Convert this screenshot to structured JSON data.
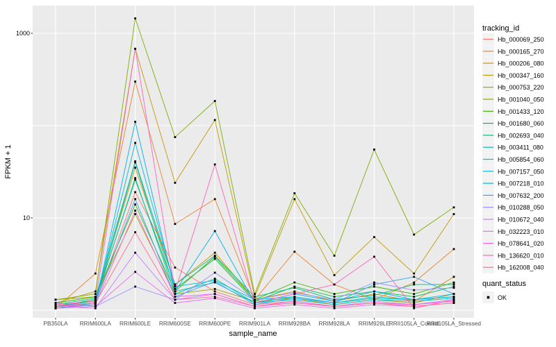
{
  "chart_data": {
    "type": "line",
    "title": "",
    "xlabel": "sample_name",
    "ylabel": "FPKM + 1",
    "y_scale": "log10",
    "ylim": [
      1,
      1500
    ],
    "grid": true,
    "legend_position": "right",
    "y_axis_tick_labels": [
      "10",
      "1000"
    ],
    "y_axis_tick_values": [
      10,
      1000
    ],
    "y_gridline_values": [
      1,
      10,
      100,
      1000
    ],
    "x_categories": [
      "PB350LA",
      "RRIM600LA",
      "RRIM600LE",
      "RRIM600SE",
      "RRIM600PE",
      "RRIM901LA",
      "RRIM928BA",
      "RRIM928LA",
      "RRIM928LE",
      "RRII105LA_Control",
      "RRII105LA_Stressed"
    ],
    "legend_title": "tracking_id",
    "quant_status": {
      "title": "quant_status",
      "items": [
        "OK"
      ]
    },
    "point_marker": "black-square",
    "series": [
      {
        "name": "Hb_000069_250",
        "color": "#F8766D",
        "values": [
          1.1,
          1.2,
          19,
          2.9,
          1.6,
          1.15,
          1.25,
          1.1,
          1.2,
          1.15,
          1.3
        ]
      },
      {
        "name": "Hb_000165_270",
        "color": "#EA8331",
        "values": [
          1.05,
          2.5,
          300,
          8.6,
          16,
          1.3,
          4.3,
          1.9,
          1.3,
          2.0,
          4.6
        ]
      },
      {
        "name": "Hb_000206_080",
        "color": "#D89000",
        "values": [
          1.1,
          1.3,
          35,
          1.9,
          4.2,
          1.3,
          1.6,
          1.25,
          1.5,
          1.25,
          2.3
        ]
      },
      {
        "name": "Hb_000347_160",
        "color": "#C09B00",
        "values": [
          1.2,
          1.6,
          680,
          24,
          115,
          1.4,
          16,
          2.4,
          6.2,
          2.5,
          11
        ]
      },
      {
        "name": "Hb_000753_220",
        "color": "#A3A500",
        "values": [
          1.3,
          1.4,
          11,
          1.5,
          1.7,
          1.25,
          1.35,
          1.15,
          1.3,
          1.2,
          1.5
        ]
      },
      {
        "name": "Hb_001040_050",
        "color": "#7CAE00",
        "values": [
          1.3,
          1.5,
          1450,
          75,
          185,
          1.5,
          18.5,
          3.9,
          55,
          6.6,
          13
        ]
      },
      {
        "name": "Hb_001433_120",
        "color": "#39B600",
        "values": [
          1.2,
          1.4,
          14,
          1.6,
          3.8,
          1.3,
          2.0,
          1.5,
          1.8,
          1.5,
          2.0
        ]
      },
      {
        "name": "Hb_001680_060",
        "color": "#00BB4E",
        "values": [
          1.1,
          1.3,
          26,
          1.7,
          3.6,
          1.25,
          1.8,
          1.4,
          1.6,
          1.4,
          1.8
        ]
      },
      {
        "name": "Hb_002693_040",
        "color": "#00BF7D",
        "values": [
          1.15,
          1.35,
          41,
          1.9,
          3.9,
          1.4,
          1.75,
          1.3,
          1.45,
          1.9,
          1.9
        ]
      },
      {
        "name": "Hb_003411_080",
        "color": "#00C1A3",
        "values": [
          1.1,
          1.25,
          27,
          1.5,
          2.2,
          1.2,
          1.4,
          1.2,
          1.35,
          1.3,
          1.4
        ]
      },
      {
        "name": "Hb_005854_060",
        "color": "#00BFC4",
        "values": [
          1.05,
          1.2,
          40,
          1.6,
          2.0,
          1.2,
          1.3,
          1.15,
          1.3,
          1.25,
          1.35
        ]
      },
      {
        "name": "Hb_007157_050",
        "color": "#00BAE0",
        "values": [
          1.1,
          1.2,
          65,
          1.8,
          2.1,
          1.3,
          1.4,
          1.2,
          1.4,
          1.3,
          1.5
        ]
      },
      {
        "name": "Hb_007218_010",
        "color": "#00B0F6",
        "values": [
          1.05,
          1.15,
          110,
          1.6,
          7.2,
          1.2,
          1.5,
          1.25,
          1.6,
          1.3,
          1.4
        ]
      },
      {
        "name": "Hb_007632_200",
        "color": "#35A2FF",
        "values": [
          1.1,
          1.2,
          16,
          1.4,
          2.05,
          1.15,
          1.35,
          1.2,
          1.9,
          2.3,
          1.5
        ]
      },
      {
        "name": "Hb_010288_050",
        "color": "#9590FF",
        "values": [
          1.2,
          1.1,
          1.8,
          1.3,
          2.55,
          1.3,
          1.55,
          1.3,
          2.0,
          1.65,
          1.75
        ]
      },
      {
        "name": "Hb_010672_040",
        "color": "#C77CFF",
        "values": [
          1.1,
          1.05,
          4.2,
          1.3,
          1.5,
          1.1,
          1.2,
          1.1,
          1.25,
          1.15,
          1.3
        ]
      },
      {
        "name": "Hb_032223_010",
        "color": "#E76BF3",
        "values": [
          1.05,
          1.1,
          2.6,
          1.2,
          1.35,
          1.05,
          1.15,
          1.05,
          1.15,
          1.1,
          1.2
        ]
      },
      {
        "name": "Hb_078641_020",
        "color": "#FA62DB",
        "values": [
          1.1,
          1.15,
          12,
          1.4,
          1.5,
          1.1,
          1.25,
          1.1,
          1.2,
          1.15,
          1.25
        ]
      },
      {
        "name": "Hb_136620_010",
        "color": "#FF62BC",
        "values": [
          1.15,
          1.25,
          680,
          1.6,
          38,
          1.2,
          1.5,
          1.9,
          3.8,
          1.05,
          1.3
        ]
      },
      {
        "name": "Hb_162008_040",
        "color": "#FF6A98",
        "values": [
          1.1,
          1.2,
          7,
          1.3,
          1.4,
          1.1,
          1.2,
          1.1,
          1.2,
          1.1,
          1.2
        ]
      }
    ]
  },
  "colors": {
    "panel_bg": "#EBEBEB",
    "grid": "#FFFFFF",
    "tick_label": "#4D4D4D",
    "axis_title": "#000000",
    "legend_key_bg": "#F2F2F2",
    "point": "#000000"
  }
}
